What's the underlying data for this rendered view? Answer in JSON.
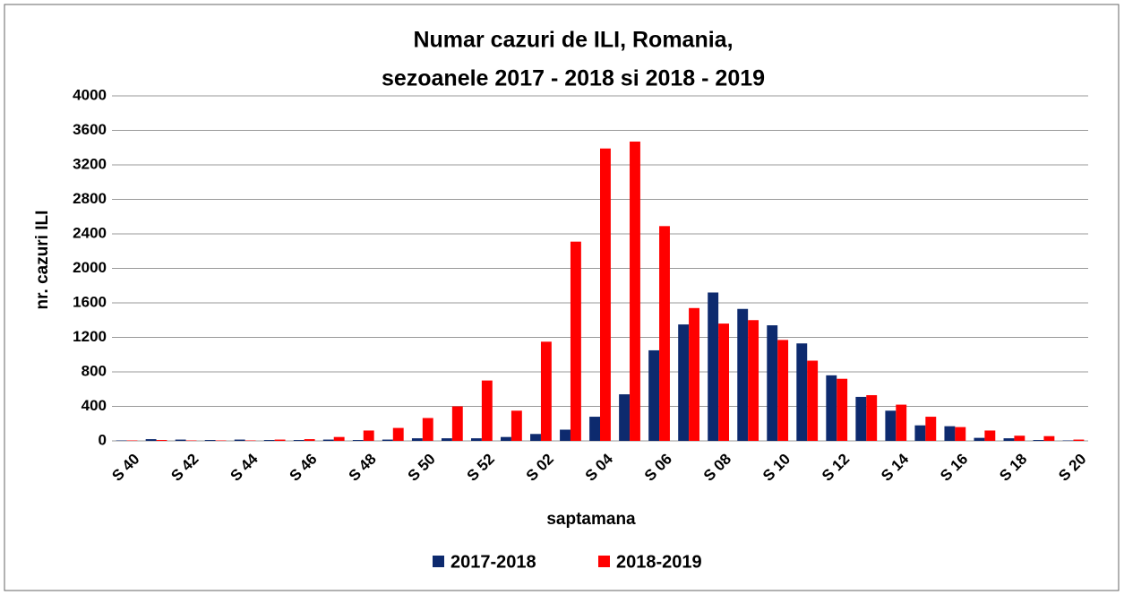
{
  "chart_data": {
    "type": "bar",
    "title": [
      "Numar cazuri de ILI, Romania,",
      "sezoanele  2017 - 2018 si 2018 - 2019"
    ],
    "x_label": "saptamana",
    "y_label": "nr. cazuri ILI",
    "categories": [
      "S 40",
      null,
      "S 42",
      null,
      "S 44",
      null,
      "S 46",
      null,
      "S 48",
      null,
      "S 50",
      null,
      "S 52",
      null,
      "S 02",
      null,
      "S 04",
      null,
      "S 06",
      null,
      "S 08",
      null,
      "S 10",
      null,
      "S 12",
      null,
      "S 14",
      null,
      "S 16",
      null,
      "S 18",
      null,
      "S 20"
    ],
    "series": [
      {
        "name": "2017-2018",
        "color": "#0d2a6e",
        "values": [
          5,
          20,
          15,
          10,
          15,
          10,
          10,
          15,
          10,
          15,
          30,
          30,
          30,
          45,
          80,
          130,
          280,
          540,
          1050,
          1350,
          1720,
          1530,
          1340,
          1130,
          760,
          510,
          350,
          180,
          170,
          35,
          30,
          10,
          5
        ]
      },
      {
        "name": "2018-2019",
        "color": "#ff0000",
        "values": [
          5,
          10,
          5,
          5,
          5,
          15,
          20,
          45,
          120,
          150,
          265,
          400,
          700,
          350,
          1150,
          2310,
          3390,
          3470,
          2490,
          1540,
          1360,
          1400,
          1170,
          930,
          720,
          530,
          420,
          280,
          160,
          120,
          60,
          55,
          15
        ]
      }
    ],
    "ylim": [
      0,
      4000
    ],
    "yticks": [
      0,
      400,
      800,
      1200,
      1600,
      2000,
      2400,
      2800,
      3200,
      3600,
      4000
    ],
    "grid": true,
    "legend": "bottom"
  }
}
